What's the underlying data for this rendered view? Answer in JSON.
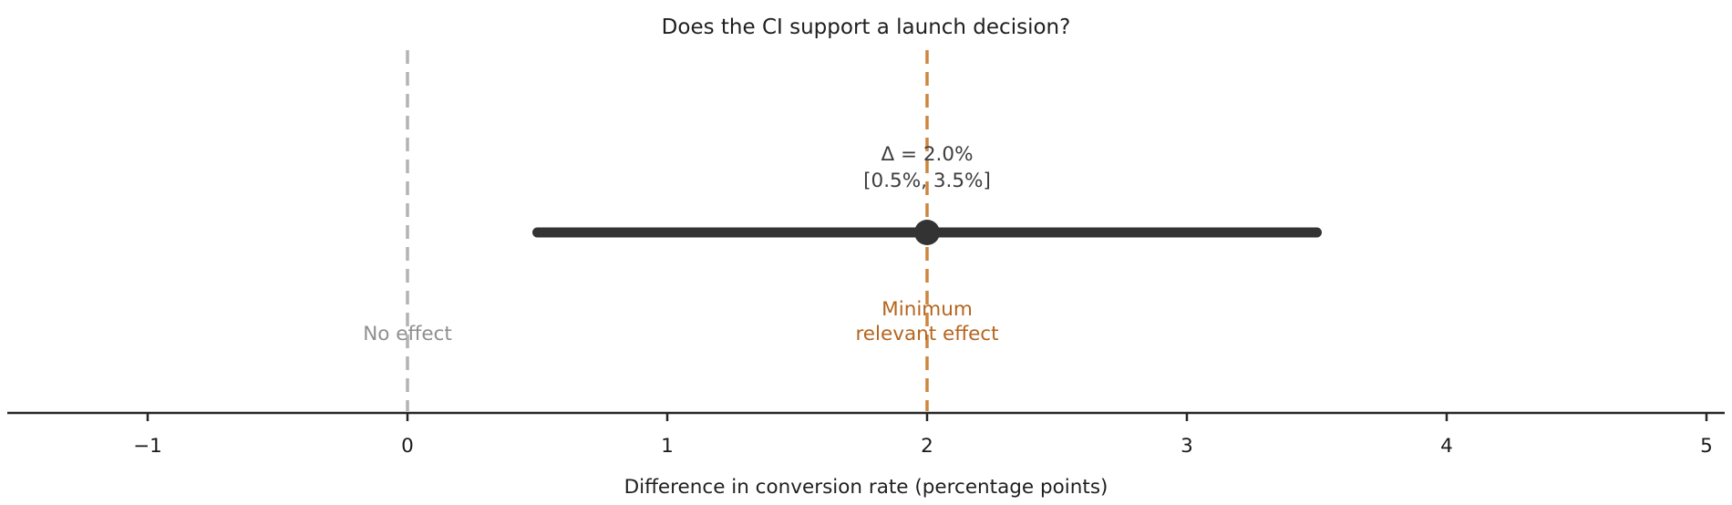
{
  "chart_data": {
    "type": "errorbar",
    "title": "Does the CI support a launch decision?",
    "xlabel": "Difference in conversion rate (percentage points)",
    "x_ticks": [
      -1,
      0,
      1,
      2,
      3,
      4,
      5
    ],
    "x_tick_labels": [
      "−1",
      "0",
      "1",
      "2",
      "3",
      "4",
      "5"
    ],
    "xlim": [
      -1.54,
      5.09
    ],
    "grid": false,
    "legend": null,
    "point": {
      "estimate": 2.0,
      "ci_low": 0.5,
      "ci_high": 3.5,
      "label_line1": "Δ = 2.0%",
      "label_line2": "[0.5%, 3.5%]"
    },
    "reference_lines": [
      {
        "value": 0,
        "label_lines": [
          "No effect"
        ],
        "line_color": "#b3b3b3",
        "label_color": "#8f8f8f",
        "style": "dashed"
      },
      {
        "value": 2,
        "label_lines": [
          "Minimum",
          "relevant effect"
        ],
        "line_color": "#cd853f",
        "label_color": "#b5651d",
        "style": "dashed"
      }
    ],
    "colors": {
      "bar": "#333333",
      "point": "#333333",
      "annotation": "#3d3d3d",
      "axis": "#262626",
      "tick_label": "#1a1a1a",
      "title": "#1f1f1f"
    }
  }
}
